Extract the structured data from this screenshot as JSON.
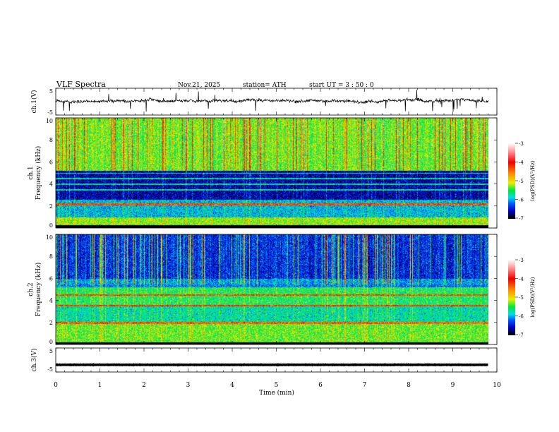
{
  "header": {
    "title": "VLF  Spectra",
    "date": "Nov.21, 2025",
    "station": "station= ATH",
    "start": "start  UT  =   3  : 50 : 0"
  },
  "chart_data": {
    "type": "heatmap",
    "title": "VLF  Spectra",
    "xlabel": "Time  (min)",
    "xlim": [
      0,
      10
    ],
    "x_ticks": [
      "0",
      "1",
      "2",
      "3",
      "4",
      "5",
      "6",
      "7",
      "8",
      "9",
      "10"
    ],
    "data_end_min": 9.8,
    "panels": [
      {
        "name": "ch1-waveform",
        "type": "line",
        "ylabel": "ch.1(V)",
        "ylim": [
          -5,
          5
        ],
        "y_ticks": [
          "5",
          "-5"
        ],
        "mean": 0.3
      },
      {
        "name": "ch1-spectrogram",
        "type": "heatmap",
        "ylabel": "ch.1\nFrequency (kHz)",
        "ylabel_top": "ch.1",
        "ylabel_main": "Frequency  (kHz)",
        "ylim": [
          0,
          10
        ],
        "y_ticks": [
          "0",
          "2",
          "4",
          "6",
          "8",
          "10"
        ],
        "colorbar": {
          "label": "log(PSD)(V²/Hz)",
          "range": [
            -7,
            -3
          ],
          "ticks": [
            "-3",
            "-4",
            "-5",
            "-6",
            "-7"
          ]
        }
      },
      {
        "name": "ch2-spectrogram",
        "type": "heatmap",
        "ylabel_top": "ch.2",
        "ylabel_main": "Frequency  (kHz)",
        "ylim": [
          0,
          10
        ],
        "y_ticks": [
          "0",
          "2",
          "4",
          "6",
          "8",
          "10"
        ],
        "colorbar": {
          "label": "log(PSD)(V²/Hz)",
          "range": [
            -7,
            -3
          ],
          "ticks": [
            "-3",
            "-4",
            "-5",
            "-6",
            "-7"
          ]
        }
      },
      {
        "name": "ch3-waveform",
        "type": "line",
        "ylabel": "ch.3(V)",
        "ylim": [
          -5,
          5
        ],
        "y_ticks": [
          "5",
          "-5"
        ],
        "mean": -2.0
      }
    ]
  }
}
